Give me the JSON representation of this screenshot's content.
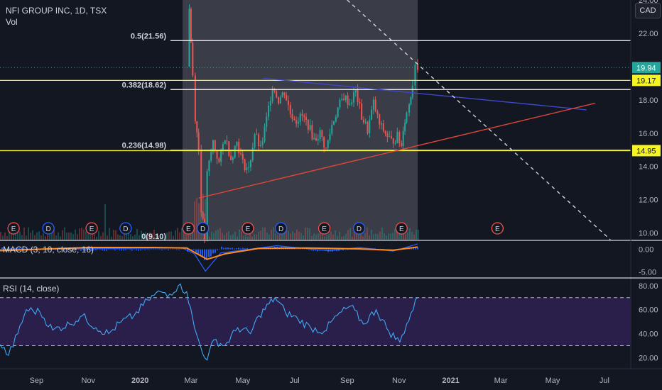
{
  "header": {
    "symbol_line": "NFI GROUP INC, 1D, TSX",
    "volume_label": "Vol",
    "currency": "CAD"
  },
  "colors": {
    "background": "#131722",
    "highlight_region": "#3a3d47",
    "up_candle": "#26a69a",
    "down_candle": "#ef5350",
    "fib_line_white": "#ffffff",
    "fib_line_yellow": "#f5f526",
    "blue_trendline": "#3f47c8",
    "red_trendline": "#e0453a",
    "dashed_line": "#d1d4dc",
    "macd_line": "#2962ff",
    "signal_line": "#ff8a1e",
    "rsi_line": "#3fa9f5",
    "rsi_band": "#2a1e4a",
    "earnings_marker": "#ef5350",
    "dividend_marker": "#2962ff",
    "price_tag_green": "#26a69a",
    "price_tag_yellow": "#f5f526"
  },
  "chart_data": [
    {
      "type": "candlestick",
      "title": "NFI GROUP INC, 1D, TSX",
      "x_tick_labels": [
        "Sep",
        "Nov",
        "2020",
        "Mar",
        "May",
        "Jul",
        "Sep",
        "Nov",
        "2021",
        "Mar",
        "May",
        "Jul"
      ],
      "y_tick_labels": [
        "10.00",
        "12.00",
        "14.00",
        "16.00",
        "18.00",
        "20.00",
        "22.00",
        "24.00"
      ],
      "ylim": [
        9.6,
        24.0
      ],
      "close_path": [
        [
          "2020-02-26",
          20.0
        ],
        [
          "2020-02-28",
          23.5
        ],
        [
          "2020-03-03",
          19.5
        ],
        [
          "2020-03-06",
          17.0
        ],
        [
          "2020-03-10",
          15.0
        ],
        [
          "2020-03-13",
          11.5
        ],
        [
          "2020-03-17",
          9.7
        ],
        [
          "2020-03-20",
          13.5
        ],
        [
          "2020-03-27",
          15.5
        ],
        [
          "2020-04-03",
          14.2
        ],
        [
          "2020-04-10",
          15.8
        ],
        [
          "2020-04-17",
          14.5
        ],
        [
          "2020-04-24",
          15.5
        ],
        [
          "2020-05-01",
          14.2
        ],
        [
          "2020-05-08",
          13.8
        ],
        [
          "2020-05-15",
          16.0
        ],
        [
          "2020-05-22",
          15.0
        ],
        [
          "2020-05-29",
          16.8
        ],
        [
          "2020-06-05",
          18.9
        ],
        [
          "2020-06-12",
          18.0
        ],
        [
          "2020-06-19",
          18.5
        ],
        [
          "2020-06-26",
          17.2
        ],
        [
          "2020-07-03",
          16.8
        ],
        [
          "2020-07-10",
          17.0
        ],
        [
          "2020-07-17",
          16.5
        ],
        [
          "2020-07-24",
          15.6
        ],
        [
          "2020-07-31",
          16.0
        ],
        [
          "2020-08-07",
          15.0
        ],
        [
          "2020-08-14",
          16.5
        ],
        [
          "2020-08-21",
          17.5
        ],
        [
          "2020-08-28",
          18.2
        ],
        [
          "2020-09-04",
          17.8
        ],
        [
          "2020-09-11",
          18.5
        ],
        [
          "2020-09-18",
          17.0
        ],
        [
          "2020-09-25",
          16.2
        ],
        [
          "2020-10-02",
          17.8
        ],
        [
          "2020-10-09",
          16.5
        ],
        [
          "2020-10-16",
          16.0
        ],
        [
          "2020-10-23",
          15.5
        ],
        [
          "2020-10-30",
          15.8
        ],
        [
          "2020-11-04",
          15.2
        ],
        [
          "2020-11-06",
          16.4
        ],
        [
          "2020-11-10",
          17.2
        ],
        [
          "2020-11-13",
          17.8
        ],
        [
          "2020-11-17",
          19.0
        ],
        [
          "2020-11-20",
          20.3
        ],
        [
          "2020-11-23",
          19.94
        ]
      ],
      "last_price": 19.94,
      "fibonacci_levels": [
        {
          "label": "0.5(21.56)",
          "value": 21.56,
          "color": "#ffffff"
        },
        {
          "label": "0.382(18.62)",
          "value": 18.62,
          "color": "#ffffff"
        },
        {
          "label": "0.236(14.98)",
          "value": 14.98,
          "color": "#f5f526"
        },
        {
          "label": "0(9.10)",
          "value": 9.1,
          "color": "#ffffff"
        }
      ],
      "horizontal_lines": [
        {
          "value": 19.17,
          "label": "19.17",
          "color": "#f5f526"
        },
        {
          "value": 14.95,
          "label": "14.95",
          "color": "#f5f526"
        }
      ],
      "trendlines": [
        {
          "name": "resistance",
          "color": "#3f47c8",
          "points": [
            [
              "2020-05-25",
              19.3
            ],
            [
              "2021-06-10",
              17.4
            ]
          ]
        },
        {
          "name": "support",
          "color": "#e0453a",
          "points": [
            [
              "2020-03-10",
              12.1
            ],
            [
              "2021-06-20",
              17.8
            ]
          ]
        },
        {
          "name": "dashed",
          "color": "#d1d4dc",
          "points": [
            [
              "2020-09-01",
              24.0
            ],
            [
              "2021-07-08",
              9.6
            ]
          ]
        }
      ],
      "events": [
        {
          "date": "2019-08-05",
          "kind": "E"
        },
        {
          "date": "2019-09-15",
          "kind": "D"
        },
        {
          "date": "2019-11-05",
          "kind": "E"
        },
        {
          "date": "2019-12-15",
          "kind": "D"
        },
        {
          "date": "2020-02-27",
          "kind": "E"
        },
        {
          "date": "2020-03-15",
          "kind": "D"
        },
        {
          "date": "2020-05-07",
          "kind": "E"
        },
        {
          "date": "2020-06-15",
          "kind": "D"
        },
        {
          "date": "2020-08-05",
          "kind": "E"
        },
        {
          "date": "2020-09-15",
          "kind": "D"
        },
        {
          "date": "2020-11-04",
          "kind": "E"
        },
        {
          "date": "2021-02-25",
          "kind": "E"
        }
      ]
    },
    {
      "type": "line",
      "title": "MACD (3, 10, close, 16)",
      "y_tick_labels": [
        "0.00",
        "-5.00"
      ],
      "ylim": [
        -6.0,
        1.5
      ],
      "series": [
        {
          "name": "MACD",
          "color": "#2962ff",
          "points": [
            [
              "2019-07-20",
              0.0
            ],
            [
              "2020-02-20",
              0.3
            ],
            [
              "2020-03-05",
              -1.0
            ],
            [
              "2020-03-18",
              -4.8
            ],
            [
              "2020-04-05",
              -0.8
            ],
            [
              "2020-06-10",
              0.8
            ],
            [
              "2020-08-10",
              -0.3
            ],
            [
              "2020-09-15",
              0.4
            ],
            [
              "2020-10-25",
              -0.4
            ],
            [
              "2020-11-23",
              1.2
            ]
          ]
        },
        {
          "name": "Signal",
          "color": "#ff8a1e",
          "points": [
            [
              "2019-07-20",
              -0.3
            ],
            [
              "2019-09-01",
              0.0
            ],
            [
              "2019-11-01",
              0.4
            ],
            [
              "2020-01-15",
              0.4
            ],
            [
              "2020-02-25",
              0.3
            ],
            [
              "2020-03-20",
              -2.2
            ],
            [
              "2020-04-10",
              -1.0
            ],
            [
              "2020-05-20",
              0.2
            ],
            [
              "2020-07-15",
              0.3
            ],
            [
              "2020-09-15",
              0.1
            ],
            [
              "2020-10-25",
              -0.2
            ],
            [
              "2020-11-23",
              0.5
            ]
          ]
        }
      ]
    },
    {
      "type": "line",
      "title": "RSI (14, close)",
      "y_tick_labels": [
        "80.00",
        "60.00",
        "40.00",
        "20.00"
      ],
      "ylim": [
        12,
        84
      ],
      "bands": [
        70,
        30
      ],
      "series": [
        {
          "name": "RSI",
          "color": "#3fa9f5",
          "points": [
            [
              "2019-07-20",
              31
            ],
            [
              "2019-07-30",
              22
            ],
            [
              "2019-08-10",
              40
            ],
            [
              "2019-08-20",
              60
            ],
            [
              "2019-09-05",
              58
            ],
            [
              "2019-09-20",
              43
            ],
            [
              "2019-10-10",
              48
            ],
            [
              "2019-10-25",
              55
            ],
            [
              "2019-11-10",
              45
            ],
            [
              "2019-11-25",
              40
            ],
            [
              "2019-12-10",
              50
            ],
            [
              "2019-12-25",
              55
            ],
            [
              "2020-01-10",
              68
            ],
            [
              "2020-01-25",
              75
            ],
            [
              "2020-02-05",
              73
            ],
            [
              "2020-02-15",
              80
            ],
            [
              "2020-02-25",
              75
            ],
            [
              "2020-03-05",
              45
            ],
            [
              "2020-03-12",
              30
            ],
            [
              "2020-03-20",
              18
            ],
            [
              "2020-03-28",
              35
            ],
            [
              "2020-04-10",
              30
            ],
            [
              "2020-04-25",
              45
            ],
            [
              "2020-05-10",
              40
            ],
            [
              "2020-05-20",
              55
            ],
            [
              "2020-06-08",
              70
            ],
            [
              "2020-06-20",
              58
            ],
            [
              "2020-07-05",
              52
            ],
            [
              "2020-07-20",
              45
            ],
            [
              "2020-08-05",
              42
            ],
            [
              "2020-08-20",
              55
            ],
            [
              "2020-09-05",
              63
            ],
            [
              "2020-09-20",
              48
            ],
            [
              "2020-10-05",
              60
            ],
            [
              "2020-10-20",
              42
            ],
            [
              "2020-11-02",
              33
            ],
            [
              "2020-11-10",
              48
            ],
            [
              "2020-11-23",
              70
            ]
          ]
        }
      ]
    }
  ]
}
